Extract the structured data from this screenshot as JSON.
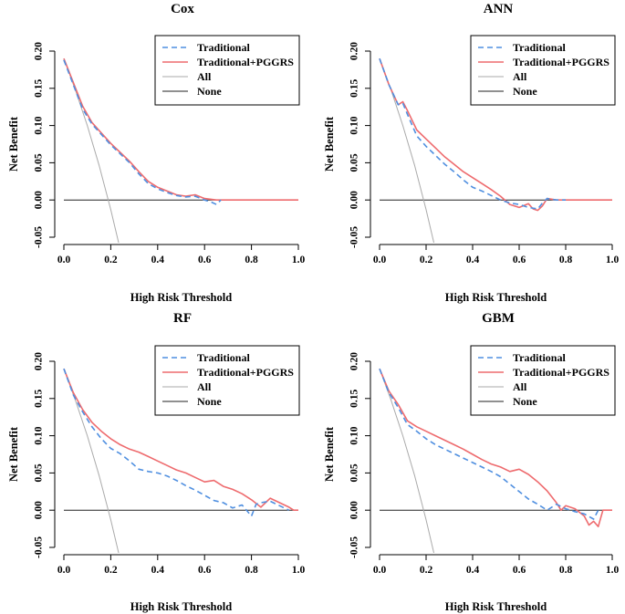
{
  "chart_data": [
    {
      "type": "line",
      "title": "Cox",
      "xlabel": "High Risk Threshold",
      "ylabel": "Net Benefit",
      "xlim": [
        0,
        1
      ],
      "ylim": [
        -0.05,
        0.2
      ],
      "xticks": [
        "0.0",
        "0.2",
        "0.4",
        "0.6",
        "0.8",
        "1.0"
      ],
      "yticks": [
        "-0.05",
        "0.00",
        "0.05",
        "0.10",
        "0.15",
        "0.20"
      ],
      "legend": [
        "Traditional",
        "Traditional+PGGRS",
        "All",
        "None"
      ],
      "series": [
        {
          "name": "Traditional",
          "x": [
            0,
            0.04,
            0.08,
            0.12,
            0.16,
            0.2,
            0.24,
            0.28,
            0.32,
            0.36,
            0.4,
            0.44,
            0.48,
            0.52,
            0.56,
            0.6,
            0.63,
            0.65,
            0.67
          ],
          "y": [
            0.188,
            0.155,
            0.122,
            0.102,
            0.088,
            0.074,
            0.062,
            0.05,
            0.035,
            0.022,
            0.015,
            0.01,
            0.006,
            0.004,
            0.005,
            0.0,
            -0.003,
            -0.006,
            0.0
          ]
        },
        {
          "name": "Traditional+PGGRS",
          "x": [
            0,
            0.04,
            0.08,
            0.12,
            0.16,
            0.2,
            0.24,
            0.28,
            0.32,
            0.36,
            0.4,
            0.44,
            0.48,
            0.52,
            0.56,
            0.6,
            0.65,
            0.7,
            0.8,
            0.9,
            1.0
          ],
          "y": [
            0.19,
            0.158,
            0.126,
            0.104,
            0.09,
            0.076,
            0.064,
            0.052,
            0.038,
            0.025,
            0.017,
            0.012,
            0.007,
            0.005,
            0.007,
            0.002,
            0.0,
            0.0,
            0.0,
            0.0,
            0.0
          ]
        },
        {
          "name": "All",
          "x": [
            0,
            0.05,
            0.1,
            0.15,
            0.2,
            0.237
          ],
          "y": [
            0.19,
            0.147,
            0.1,
            0.047,
            -0.013,
            -0.062
          ]
        },
        {
          "name": "None",
          "x": [
            0,
            1
          ],
          "y": [
            0,
            0
          ]
        }
      ]
    },
    {
      "type": "line",
      "title": "ANN",
      "xlabel": "High Risk Threshold",
      "ylabel": "Net Benefit",
      "xlim": [
        0,
        1
      ],
      "ylim": [
        -0.05,
        0.2
      ],
      "xticks": [
        "0.0",
        "0.2",
        "0.4",
        "0.6",
        "0.8",
        "1.0"
      ],
      "yticks": [
        "-0.05",
        "0.00",
        "0.05",
        "0.10",
        "0.15",
        "0.20"
      ],
      "legend": [
        "Traditional",
        "Traditional+PGGRS",
        "All",
        "None"
      ],
      "series": [
        {
          "name": "Traditional",
          "x": [
            0,
            0.04,
            0.08,
            0.1,
            0.12,
            0.16,
            0.2,
            0.24,
            0.28,
            0.32,
            0.36,
            0.4,
            0.44,
            0.48,
            0.52,
            0.56,
            0.6,
            0.64,
            0.68,
            0.7,
            0.72,
            0.76,
            0.8
          ],
          "y": [
            0.19,
            0.155,
            0.128,
            0.13,
            0.115,
            0.086,
            0.072,
            0.06,
            0.048,
            0.038,
            0.027,
            0.017,
            0.012,
            0.006,
            0.0,
            -0.004,
            -0.006,
            -0.01,
            -0.012,
            -0.004,
            0.002,
            0.0,
            0.0
          ]
        },
        {
          "name": "Traditional+PGGRS",
          "x": [
            0,
            0.04,
            0.08,
            0.1,
            0.12,
            0.16,
            0.2,
            0.24,
            0.28,
            0.32,
            0.36,
            0.4,
            0.44,
            0.48,
            0.52,
            0.56,
            0.6,
            0.64,
            0.66,
            0.68,
            0.7,
            0.72,
            0.76,
            0.8,
            0.9,
            1.0
          ],
          "y": [
            0.19,
            0.155,
            0.128,
            0.132,
            0.12,
            0.094,
            0.082,
            0.07,
            0.058,
            0.048,
            0.038,
            0.03,
            0.022,
            0.014,
            0.005,
            -0.006,
            -0.01,
            -0.005,
            -0.012,
            -0.014,
            -0.008,
            0.002,
            0.0,
            0.0,
            0.0,
            0.0
          ]
        },
        {
          "name": "All",
          "x": [
            0,
            0.05,
            0.1,
            0.15,
            0.2,
            0.237
          ],
          "y": [
            0.19,
            0.147,
            0.1,
            0.047,
            -0.013,
            -0.062
          ]
        },
        {
          "name": "None",
          "x": [
            0,
            1
          ],
          "y": [
            0,
            0
          ]
        }
      ]
    },
    {
      "type": "line",
      "title": "RF",
      "xlabel": "High Risk Threshold",
      "ylabel": "Net Benefit",
      "xlim": [
        0,
        1
      ],
      "ylim": [
        -0.05,
        0.2
      ],
      "xticks": [
        "0.0",
        "0.2",
        "0.4",
        "0.6",
        "0.8",
        "1.0"
      ],
      "yticks": [
        "-0.05",
        "0.00",
        "0.05",
        "0.10",
        "0.15",
        "0.20"
      ],
      "legend": [
        "Traditional",
        "Traditional+PGGRS",
        "All",
        "None"
      ],
      "series": [
        {
          "name": "Traditional",
          "x": [
            0,
            0.04,
            0.08,
            0.12,
            0.16,
            0.2,
            0.24,
            0.28,
            0.32,
            0.36,
            0.4,
            0.44,
            0.48,
            0.52,
            0.56,
            0.6,
            0.64,
            0.68,
            0.72,
            0.76,
            0.8,
            0.82,
            0.84,
            0.88,
            0.92,
            0.96
          ],
          "y": [
            0.19,
            0.155,
            0.132,
            0.112,
            0.096,
            0.083,
            0.076,
            0.066,
            0.055,
            0.052,
            0.05,
            0.046,
            0.04,
            0.033,
            0.027,
            0.02,
            0.013,
            0.01,
            0.003,
            0.007,
            -0.008,
            0.008,
            0.01,
            0.012,
            0.006,
            0.0
          ]
        },
        {
          "name": "Traditional+PGGRS",
          "x": [
            0,
            0.04,
            0.08,
            0.12,
            0.16,
            0.2,
            0.24,
            0.28,
            0.32,
            0.36,
            0.4,
            0.44,
            0.48,
            0.52,
            0.56,
            0.6,
            0.64,
            0.68,
            0.72,
            0.76,
            0.8,
            0.84,
            0.86,
            0.88,
            0.92,
            0.96,
            0.98,
            1.0
          ],
          "y": [
            0.19,
            0.158,
            0.135,
            0.118,
            0.106,
            0.096,
            0.088,
            0.082,
            0.078,
            0.072,
            0.066,
            0.06,
            0.054,
            0.05,
            0.044,
            0.038,
            0.04,
            0.032,
            0.028,
            0.022,
            0.014,
            0.004,
            0.01,
            0.016,
            0.01,
            0.004,
            0.0,
            0.0
          ]
        },
        {
          "name": "All",
          "x": [
            0,
            0.05,
            0.1,
            0.15,
            0.2,
            0.237
          ],
          "y": [
            0.19,
            0.147,
            0.1,
            0.047,
            -0.013,
            -0.062
          ]
        },
        {
          "name": "None",
          "x": [
            0,
            1
          ],
          "y": [
            0,
            0
          ]
        }
      ]
    },
    {
      "type": "line",
      "title": "GBM",
      "xlabel": "High Risk Threshold",
      "ylabel": "Net Benefit",
      "xlim": [
        0,
        1
      ],
      "ylim": [
        -0.05,
        0.2
      ],
      "xticks": [
        "0.0",
        "0.2",
        "0.4",
        "0.6",
        "0.8",
        "1.0"
      ],
      "yticks": [
        "-0.05",
        "0.00",
        "0.05",
        "0.10",
        "0.15",
        "0.20"
      ],
      "legend": [
        "Traditional",
        "Traditional+PGGRS",
        "All",
        "None"
      ],
      "series": [
        {
          "name": "Traditional",
          "x": [
            0,
            0.04,
            0.08,
            0.12,
            0.16,
            0.2,
            0.24,
            0.28,
            0.32,
            0.36,
            0.4,
            0.44,
            0.48,
            0.52,
            0.56,
            0.6,
            0.64,
            0.68,
            0.72,
            0.76,
            0.8,
            0.84,
            0.88,
            0.92,
            0.94
          ],
          "y": [
            0.19,
            0.158,
            0.138,
            0.115,
            0.106,
            0.096,
            0.088,
            0.082,
            0.076,
            0.07,
            0.064,
            0.058,
            0.052,
            0.045,
            0.035,
            0.025,
            0.015,
            0.008,
            0.0,
            0.008,
            0.002,
            -0.002,
            -0.005,
            -0.012,
            0.0
          ]
        },
        {
          "name": "Traditional+PGGRS",
          "x": [
            0,
            0.04,
            0.08,
            0.12,
            0.16,
            0.2,
            0.24,
            0.28,
            0.32,
            0.36,
            0.4,
            0.44,
            0.48,
            0.52,
            0.56,
            0.6,
            0.64,
            0.68,
            0.72,
            0.76,
            0.78,
            0.8,
            0.84,
            0.88,
            0.9,
            0.92,
            0.94,
            0.96,
            1.0
          ],
          "y": [
            0.19,
            0.16,
            0.142,
            0.12,
            0.112,
            0.106,
            0.1,
            0.094,
            0.088,
            0.082,
            0.075,
            0.068,
            0.062,
            0.058,
            0.052,
            0.055,
            0.048,
            0.038,
            0.026,
            0.01,
            0.0,
            0.006,
            0.002,
            -0.008,
            -0.02,
            -0.015,
            -0.022,
            0.0,
            0.0
          ]
        },
        {
          "name": "All",
          "x": [
            0,
            0.05,
            0.1,
            0.15,
            0.2,
            0.237
          ],
          "y": [
            0.19,
            0.147,
            0.1,
            0.047,
            -0.013,
            -0.062
          ]
        },
        {
          "name": "None",
          "x": [
            0,
            1
          ],
          "y": [
            0,
            0
          ]
        }
      ]
    }
  ],
  "colors": {
    "Traditional": "#4f8fe0",
    "Traditional+PGGRS": "#ee6b6e",
    "All": "#aaaaaa",
    "None": "#222222",
    "axis": "#000000"
  }
}
